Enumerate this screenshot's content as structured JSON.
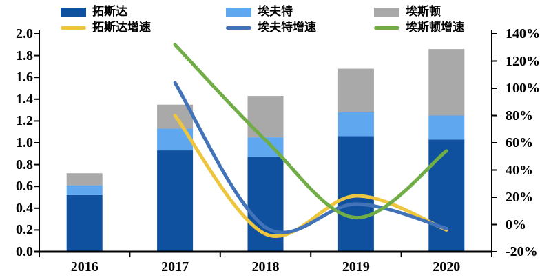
{
  "chart_data": {
    "type": "combo-stacked-bar-line",
    "categories": [
      "2016",
      "2017",
      "2018",
      "2019",
      "2020"
    ],
    "bar_series": [
      {
        "name": "拓斯达",
        "color": "#0F519E",
        "axis": "left",
        "values": [
          0.52,
          0.93,
          0.87,
          1.06,
          1.03
        ]
      },
      {
        "name": "埃夫特",
        "color": "#5FA8F0",
        "axis": "left",
        "values": [
          0.09,
          0.2,
          0.18,
          0.22,
          0.22
        ]
      },
      {
        "name": "埃斯顿",
        "color": "#A9A9A9",
        "axis": "left",
        "values": [
          0.11,
          0.22,
          0.38,
          0.4,
          0.61
        ]
      }
    ],
    "line_series": [
      {
        "name": "拓斯达增速",
        "color": "#EDC53F",
        "axis": "right",
        "values": [
          null,
          80,
          -7,
          21,
          -4
        ]
      },
      {
        "name": "埃夫特增速",
        "color": "#4273B9",
        "axis": "right",
        "values": [
          null,
          104,
          -2,
          15,
          -3
        ]
      },
      {
        "name": "埃斯顿增速",
        "color": "#70AD47",
        "axis": "right",
        "values": [
          null,
          132,
          62,
          5,
          54
        ]
      }
    ],
    "left_axis": {
      "min": 0.0,
      "max": 2.0,
      "step": 0.2,
      "tick_labels": [
        "0.0",
        "0.2",
        "0.4",
        "0.6",
        "0.8",
        "1.0",
        "1.2",
        "1.4",
        "1.6",
        "1.8",
        "2.0"
      ]
    },
    "right_axis": {
      "min": -20,
      "max": 140,
      "step": 20,
      "tick_labels": [
        "-20%",
        "0%",
        "20%",
        "40%",
        "60%",
        "80%",
        "100%",
        "120%",
        "140%"
      ]
    },
    "legend_position": "top",
    "grid": false,
    "axis_color": "#000000",
    "background_color": "#ffffff"
  }
}
